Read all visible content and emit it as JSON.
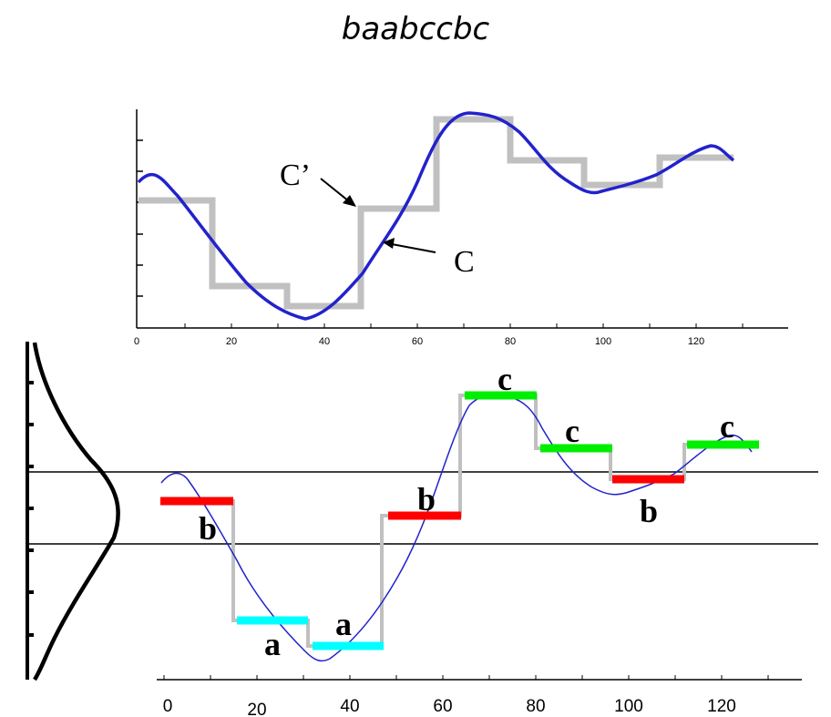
{
  "title": "baabccbc",
  "top_plot": {
    "x_ticks": [
      "0",
      "20",
      "40",
      "60",
      "80",
      "100",
      "120"
    ],
    "labels": {
      "original": "C",
      "approximation": "C’"
    },
    "colors": {
      "original": "#2222cc",
      "approximation": "#c0c0c0"
    }
  },
  "bottom_plot": {
    "x_ticks": [
      "0",
      "20",
      "40",
      "60",
      "80",
      "100",
      "120"
    ],
    "symbols": [
      "b",
      "a",
      "a",
      "b",
      "c",
      "c",
      "b",
      "c"
    ],
    "symbol_colors": {
      "a": "#00ffff",
      "b": "#ff0000",
      "c": "#00ee00"
    },
    "colors": {
      "original": "#2222cc",
      "approximation": "#c0c0c0"
    }
  }
}
